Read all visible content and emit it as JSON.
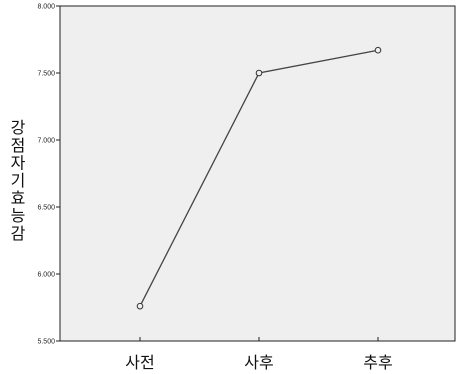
{
  "chart_data": {
    "type": "line",
    "categories": [
      "사전",
      "사후",
      "추후"
    ],
    "values": [
      5.76,
      7.5,
      7.67
    ],
    "ylabel": "강점자기효능감",
    "ylim": [
      5.5,
      8.0
    ],
    "yticks": [
      "5.500",
      "6.000",
      "6.500",
      "7.000",
      "7.500",
      "8.000"
    ],
    "grid": false,
    "legend": "none",
    "colors": {
      "plot_background": "#efefef",
      "line": "#444444",
      "marker_edge": "#333333",
      "axis": "#222222"
    }
  }
}
